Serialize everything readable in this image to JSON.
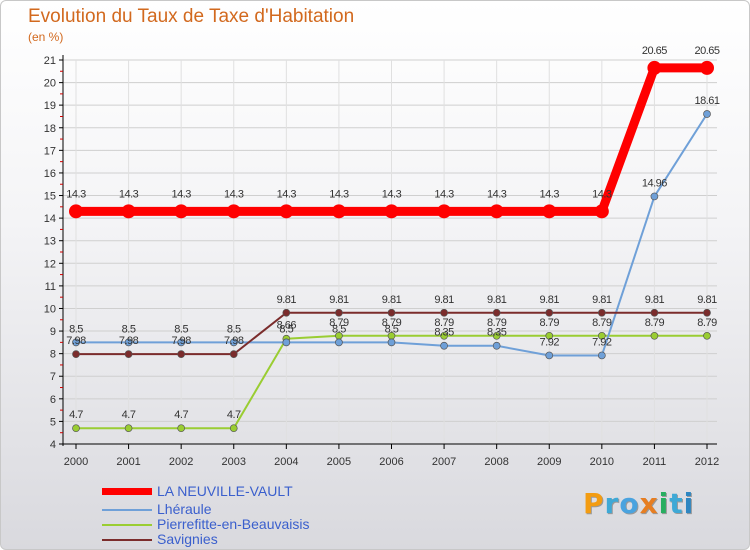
{
  "title": "Evolution du Taux de Taxe d'Habitation",
  "unit": "(en %)",
  "logo": {
    "text": "Proxiti",
    "letters": [
      "P",
      "r",
      "o",
      "x",
      "i",
      "t",
      "i"
    ],
    "colors": [
      "#f39c12",
      "#3fa9d6",
      "#4aa3df",
      "#e67e22",
      "#27ae60",
      "#3fa9d6",
      "#2e86c1"
    ]
  },
  "chart_data": {
    "type": "line",
    "title": "Evolution du Taux de Taxe d'Habitation",
    "ylabel": "(en %)",
    "xlabel": "",
    "ylim": [
      4,
      21
    ],
    "yticks": [
      "4",
      "5",
      "6",
      "7",
      "8",
      "9",
      "10",
      "11",
      "12",
      "13",
      "14",
      "15",
      "16",
      "17",
      "18",
      "19",
      "20",
      "21"
    ],
    "x": [
      "2000",
      "2001",
      "2002",
      "2003",
      "2004",
      "2005",
      "2006",
      "2007",
      "2008",
      "2009",
      "2010",
      "2011",
      "2012"
    ],
    "series": [
      {
        "name": "LA NEUVILLE-VAULT",
        "color": "#ff0000",
        "values": [
          14.3,
          14.3,
          14.3,
          14.3,
          14.3,
          14.3,
          14.3,
          14.3,
          14.3,
          14.3,
          14.3,
          20.65,
          20.65
        ],
        "labels": [
          "14.3",
          "14.3",
          "14.3",
          "14.3",
          "14.3",
          "14.3",
          "14.3",
          "14.3",
          "14.3",
          "14.3",
          "14.3",
          "20.65",
          "20.65"
        ]
      },
      {
        "name": "Lhéraule",
        "color": "#6fa0d8",
        "values": [
          8.5,
          8.5,
          8.5,
          8.5,
          8.5,
          8.5,
          8.5,
          8.35,
          8.35,
          7.92,
          7.92,
          14.96,
          18.61
        ],
        "labels": [
          "8.5",
          "8.5",
          "8.5",
          "8.5",
          "8.5",
          "8.5",
          "8.5",
          "8.35",
          "8.35",
          "7.92",
          "7.92",
          "14.96",
          "18.61"
        ]
      },
      {
        "name": "Pierrefitte-en-Beauvaisis",
        "color": "#9acd32",
        "values": [
          4.7,
          4.7,
          4.7,
          4.7,
          8.66,
          8.79,
          8.79,
          8.79,
          8.79,
          8.79,
          8.79,
          8.79,
          8.79
        ],
        "labels": [
          "4.7",
          "4.7",
          "4.7",
          "4.7",
          "8.66",
          "8.79",
          "8.79",
          "8.79",
          "8.79",
          "8.79",
          "8.79",
          "8.79",
          "8.79"
        ]
      },
      {
        "name": "Savignies",
        "color": "#7b2c2c",
        "values": [
          7.98,
          7.98,
          7.98,
          7.98,
          9.81,
          9.81,
          9.81,
          9.81,
          9.81,
          9.81,
          9.81,
          9.81,
          9.81
        ],
        "labels": [
          "7.98",
          "7.98",
          "7.98",
          "7.98",
          "9.81",
          "9.81",
          "9.81",
          "9.81",
          "9.81",
          "9.81",
          "9.81",
          "9.81",
          "9.81"
        ]
      }
    ]
  }
}
